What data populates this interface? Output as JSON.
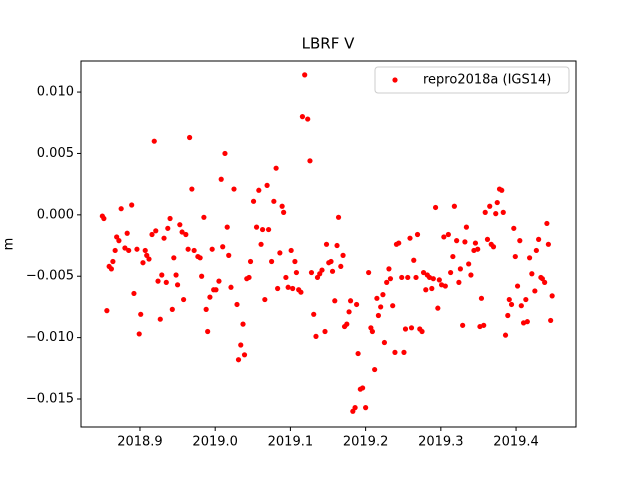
{
  "chart_data": {
    "type": "scatter",
    "title": "LBRF V",
    "ylabel": "m",
    "x": [
      2018.85,
      2018.852,
      2018.856,
      2018.859,
      2018.862,
      2018.864,
      2018.867,
      2018.869,
      2018.872,
      2018.875,
      2018.88,
      2018.883,
      2018.885,
      2018.889,
      2018.892,
      2018.896,
      2018.899,
      2018.901,
      2018.904,
      2018.907,
      2018.909,
      2018.912,
      2018.916,
      2018.919,
      2018.921,
      2018.924,
      2018.927,
      2018.929,
      2018.932,
      2018.935,
      2018.937,
      2018.94,
      2018.943,
      2018.945,
      2018.948,
      2018.95,
      2018.953,
      2018.956,
      2018.958,
      2018.961,
      2018.964,
      2018.966,
      2018.969,
      2018.972,
      2018.977,
      2018.98,
      2018.982,
      2018.985,
      2018.988,
      2018.99,
      2018.993,
      2018.996,
      2018.998,
      2019.001,
      2019.005,
      2019.008,
      2019.01,
      2019.013,
      2019.016,
      2019.018,
      2019.021,
      2019.025,
      2019.029,
      2019.031,
      2019.034,
      2019.037,
      2019.039,
      2019.042,
      2019.045,
      2019.047,
      2019.051,
      2019.055,
      2019.058,
      2019.061,
      2019.063,
      2019.066,
      2019.069,
      2019.071,
      2019.075,
      2019.078,
      2019.081,
      2019.083,
      2019.086,
      2019.089,
      2019.091,
      2019.094,
      2019.097,
      2019.101,
      2019.103,
      2019.106,
      2019.108,
      2019.111,
      2019.114,
      2019.116,
      2019.119,
      2019.123,
      2019.126,
      2019.128,
      2019.131,
      2019.134,
      2019.136,
      2019.139,
      2019.142,
      2019.146,
      2019.148,
      2019.151,
      2019.154,
      2019.156,
      2019.159,
      2019.162,
      2019.164,
      2019.167,
      2019.17,
      2019.172,
      2019.175,
      2019.178,
      2019.18,
      2019.183,
      2019.186,
      2019.188,
      2019.19,
      2019.193,
      2019.196,
      2019.2,
      2019.204,
      2019.207,
      2019.209,
      2019.212,
      2019.215,
      2019.217,
      2019.22,
      2019.223,
      2019.225,
      2019.228,
      2019.231,
      2019.233,
      2019.236,
      2019.239,
      2019.241,
      2019.244,
      2019.248,
      2019.251,
      2019.253,
      2019.256,
      2019.259,
      2019.261,
      2019.264,
      2019.267,
      2019.269,
      2019.272,
      2019.275,
      2019.277,
      2019.28,
      2019.282,
      2019.285,
      2019.288,
      2019.29,
      2019.293,
      2019.296,
      2019.298,
      2019.301,
      2019.304,
      2019.306,
      2019.31,
      2019.313,
      2019.316,
      2019.318,
      2019.321,
      2019.324,
      2019.326,
      2019.329,
      2019.332,
      2019.334,
      2019.337,
      2019.34,
      2019.344,
      2019.346,
      2019.349,
      2019.352,
      2019.354,
      2019.357,
      2019.359,
      2019.362,
      2019.365,
      2019.367,
      2019.37,
      2019.373,
      2019.375,
      2019.378,
      2019.381,
      2019.383,
      2019.386,
      2019.389,
      2019.391,
      2019.394,
      2019.397,
      2019.399,
      2019.402,
      2019.405,
      2019.407,
      2019.41,
      2019.413,
      2019.415,
      2019.418,
      2019.421,
      2019.425,
      2019.427,
      2019.43,
      2019.433,
      2019.435,
      2019.438,
      2019.441,
      2019.443,
      2019.446,
      2019.448
    ],
    "series": [
      {
        "name": "repro2018a (IGS14)",
        "color": "#ff0000",
        "values": [
          -0.0001,
          -0.0003,
          -0.0078,
          -0.0042,
          -0.0044,
          -0.0038,
          -0.0029,
          -0.0018,
          -0.0021,
          0.0005,
          -0.0027,
          -0.0015,
          -0.0029,
          0.0008,
          -0.0064,
          -0.0028,
          -0.0097,
          -0.0081,
          -0.0039,
          -0.0029,
          -0.0033,
          -0.0036,
          -0.0016,
          0.006,
          -0.0013,
          -0.0054,
          -0.0085,
          -0.0049,
          -0.0019,
          -0.0055,
          -0.0011,
          -0.0003,
          -0.0077,
          -0.0035,
          -0.0049,
          -0.0057,
          -0.0008,
          -0.0014,
          -0.0069,
          -0.0016,
          -0.0028,
          0.0063,
          0.0021,
          -0.0029,
          -0.0034,
          -0.0035,
          -0.005,
          -0.0002,
          -0.0077,
          -0.0095,
          -0.0067,
          -0.0028,
          -0.0061,
          -0.0061,
          -0.0054,
          0.0029,
          -0.0026,
          0.005,
          -0.001,
          -0.0033,
          -0.0059,
          0.0021,
          -0.0073,
          -0.0118,
          -0.0106,
          -0.0089,
          -0.0114,
          -0.0052,
          -0.0051,
          -0.0038,
          0.0011,
          -0.001,
          0.002,
          -0.0024,
          -0.0012,
          -0.0069,
          0.0024,
          -0.0012,
          -0.0038,
          0.0011,
          0.0038,
          -0.006,
          -0.0031,
          0.0007,
          0.0002,
          -0.0051,
          -0.0059,
          -0.0029,
          -0.006,
          -0.0038,
          -0.0047,
          -0.0061,
          -0.0063,
          0.008,
          0.0114,
          0.0078,
          0.0044,
          -0.0047,
          -0.0081,
          -0.0099,
          -0.0051,
          -0.0048,
          -0.0045,
          -0.0095,
          -0.0024,
          -0.0039,
          -0.0038,
          -0.0046,
          -0.007,
          -0.0025,
          -0.0002,
          -0.0042,
          -0.0033,
          -0.0091,
          -0.0089,
          -0.0079,
          -0.007,
          -0.016,
          -0.0157,
          -0.0073,
          -0.0113,
          -0.0142,
          -0.0141,
          -0.0157,
          -0.0047,
          -0.0092,
          -0.0095,
          -0.0126,
          -0.0068,
          -0.0082,
          -0.0075,
          -0.0065,
          -0.0104,
          -0.0055,
          -0.0044,
          -0.0052,
          -0.0074,
          -0.0112,
          -0.0024,
          -0.0023,
          -0.0051,
          -0.0112,
          -0.0093,
          -0.0051,
          -0.0019,
          -0.0092,
          -0.0037,
          -0.0051,
          -0.0016,
          -0.0093,
          -0.0095,
          -0.0047,
          -0.0061,
          -0.0049,
          -0.0051,
          -0.006,
          -0.0052,
          0.0006,
          -0.0076,
          -0.0053,
          -0.0057,
          -0.0018,
          -0.0058,
          -0.0016,
          -0.0047,
          -0.0034,
          0.0007,
          -0.0021,
          -0.0055,
          -0.0044,
          -0.009,
          -0.0022,
          -0.001,
          -0.004,
          -0.0049,
          -0.0029,
          -0.0023,
          -0.0028,
          -0.0091,
          -0.0068,
          -0.009,
          0.0002,
          -0.002,
          0.0007,
          -0.0024,
          -0.0026,
          0.0001,
          0.001,
          0.0021,
          0.002,
          0.0002,
          -0.0098,
          -0.0082,
          -0.0069,
          -0.0073,
          -0.0011,
          -0.0034,
          -0.0058,
          -0.0021,
          -0.0074,
          -0.0088,
          -0.0069,
          -0.0087,
          -0.0035,
          -0.0048,
          -0.0062,
          -0.0029,
          -0.002,
          -0.0051,
          -0.0052,
          -0.0055,
          -0.0007,
          -0.0024,
          -0.0086,
          -0.0066
        ]
      }
    ],
    "xlim": [
      2018.8216,
      2019.4797
    ],
    "ylim": [
      -0.01728,
      0.01253
    ],
    "xticks": [
      2018.9,
      {
        "value": 2019,
        "label": "2019.0"
      },
      2019.1,
      2019.2,
      2019.3,
      2019.4
    ],
    "yticks": [
      {
        "value": -0.015,
        "label": "−0.015"
      },
      {
        "value": -0.01,
        "label": "−0.010"
      },
      {
        "value": -0.005,
        "label": "−0.005"
      },
      {
        "value": 0,
        "label": "0.000"
      },
      0.005,
      {
        "value": 0.01,
        "label": "0.010"
      }
    ],
    "grid": false,
    "legend": "upper right"
  }
}
